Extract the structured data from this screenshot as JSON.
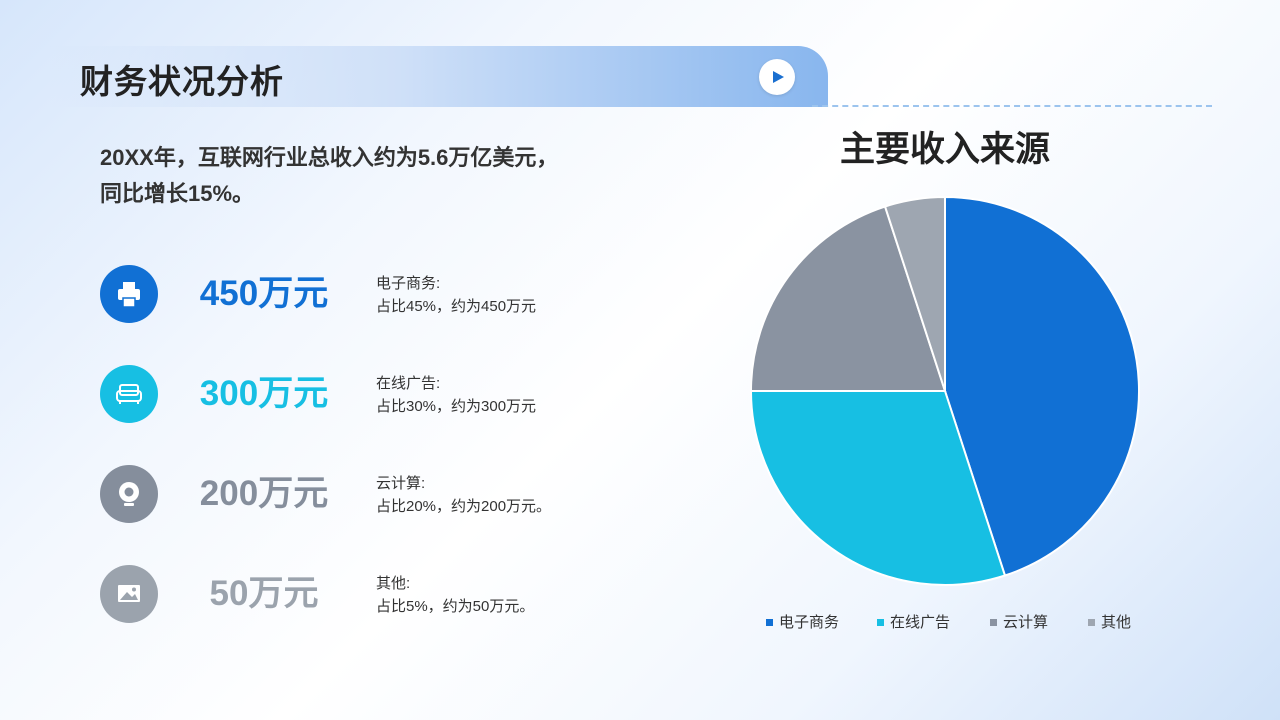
{
  "header": {
    "title": "财务状况分析"
  },
  "summary": {
    "line1": "20XX年，互联网行业总收入约为5.6万亿美元，",
    "line2": "同比增长15%。"
  },
  "items": [
    {
      "amount": "450万元",
      "label": "电子商务:",
      "detail": "占比45%，约为450万元",
      "color": "#1170d4",
      "icon": "printer-icon"
    },
    {
      "amount": "300万元",
      "label": "在线广告:",
      "detail": "占比30%，约为300万元",
      "color": "#17bfe3",
      "icon": "sofa-icon"
    },
    {
      "amount": "200万元",
      "label": "云计算:",
      "detail": "占比20%，约为200万元。",
      "color": "#858e9c",
      "icon": "webcam-icon"
    },
    {
      "amount": "50万元",
      "label": "其他:",
      "detail": "占比5%，约为50万元。",
      "color": "#9ba3ad",
      "icon": "image-icon"
    }
  ],
  "chart_data": {
    "type": "pie",
    "title": "主要收入来源",
    "categories": [
      "电子商务",
      "在线广告",
      "云计算",
      "其他"
    ],
    "values": [
      45,
      30,
      20,
      5
    ],
    "colors": [
      "#1170d4",
      "#17bfe3",
      "#8a93a1",
      "#9ea6b1"
    ],
    "legend": "bottom"
  }
}
